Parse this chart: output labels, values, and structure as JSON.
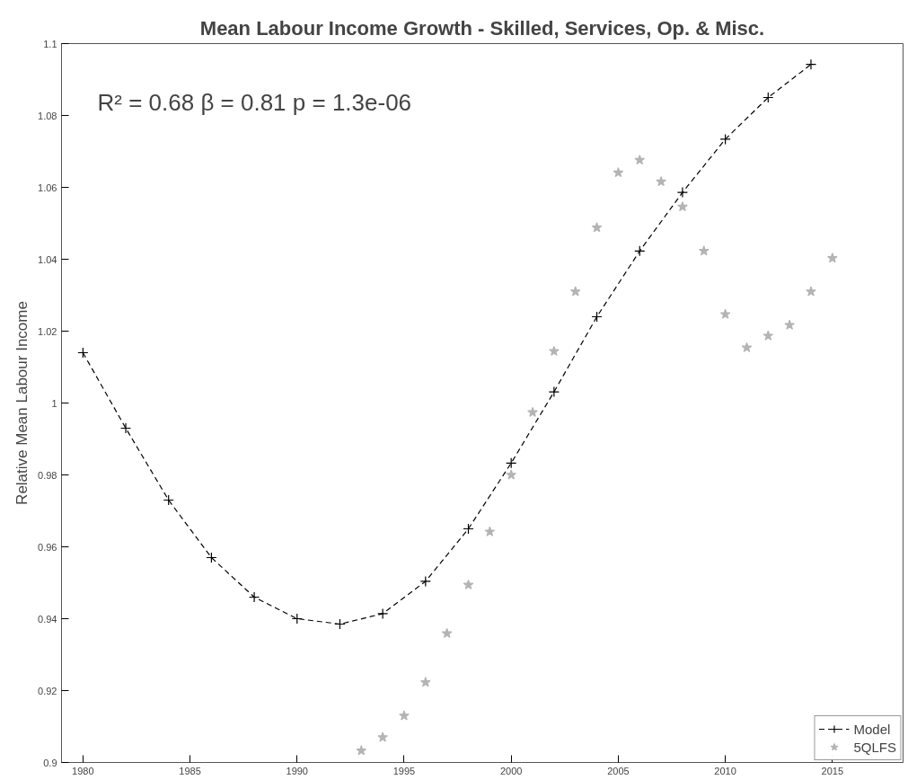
{
  "chart_data": {
    "type": "line",
    "title": "Mean Labour Income Growth - Skilled, Services, Op. & Misc.",
    "ylabel": "Relative Mean Labour Income",
    "annotations": [
      "R² = 0.68    β = 0.81    p = 1.3e-06"
    ],
    "xlim": [
      1979,
      2018.3
    ],
    "xticks": [
      1980,
      1985,
      1990,
      1995,
      2000,
      2005,
      2010,
      2015
    ],
    "ylim": [
      0.9,
      1.1
    ],
    "yticks": [
      0.9,
      0.92,
      0.94,
      0.96,
      0.98,
      {
        "value": 1,
        "label": "1"
      },
      1.02,
      1.04,
      1.06,
      1.08,
      1.1
    ],
    "grid": false,
    "legend": "bottom right",
    "series": [
      {
        "name": "Model",
        "color": "#000000",
        "marker": "cross",
        "line_style": "dashed",
        "x": [
          1980,
          1982,
          1984,
          1986,
          1988,
          1990,
          1992,
          1994,
          1996,
          1998,
          2000,
          2002,
          2004,
          2006,
          2008,
          2010,
          2012,
          2014
        ],
        "values": [
          1.014,
          0.993,
          0.973,
          0.957,
          0.946,
          0.94,
          0.9385,
          0.9414,
          0.9504,
          0.965,
          0.9833,
          1.0031,
          1.024,
          1.0423,
          1.0586,
          1.0734,
          1.085,
          1.0942
        ]
      },
      {
        "name": "5QLFS",
        "type": "scatter",
        "color": "#b4b4b4",
        "marker": "star",
        "x": [
          1993,
          1994,
          1995,
          1996,
          1997,
          1998,
          1999,
          2000,
          2001,
          2002,
          2003,
          2004,
          2005,
          2006,
          2007,
          2008,
          2009,
          2010,
          2011,
          2012,
          2013,
          2014,
          2015
        ],
        "values": [
          0.9033,
          0.907,
          0.913,
          0.9223,
          0.9359,
          0.9494,
          0.9642,
          0.98,
          0.9974,
          1.0144,
          1.031,
          1.0488,
          1.0641,
          1.0676,
          1.0616,
          1.0546,
          1.0423,
          1.0247,
          1.0154,
          1.0187,
          1.0217,
          1.031,
          1.0403
        ]
      }
    ]
  }
}
